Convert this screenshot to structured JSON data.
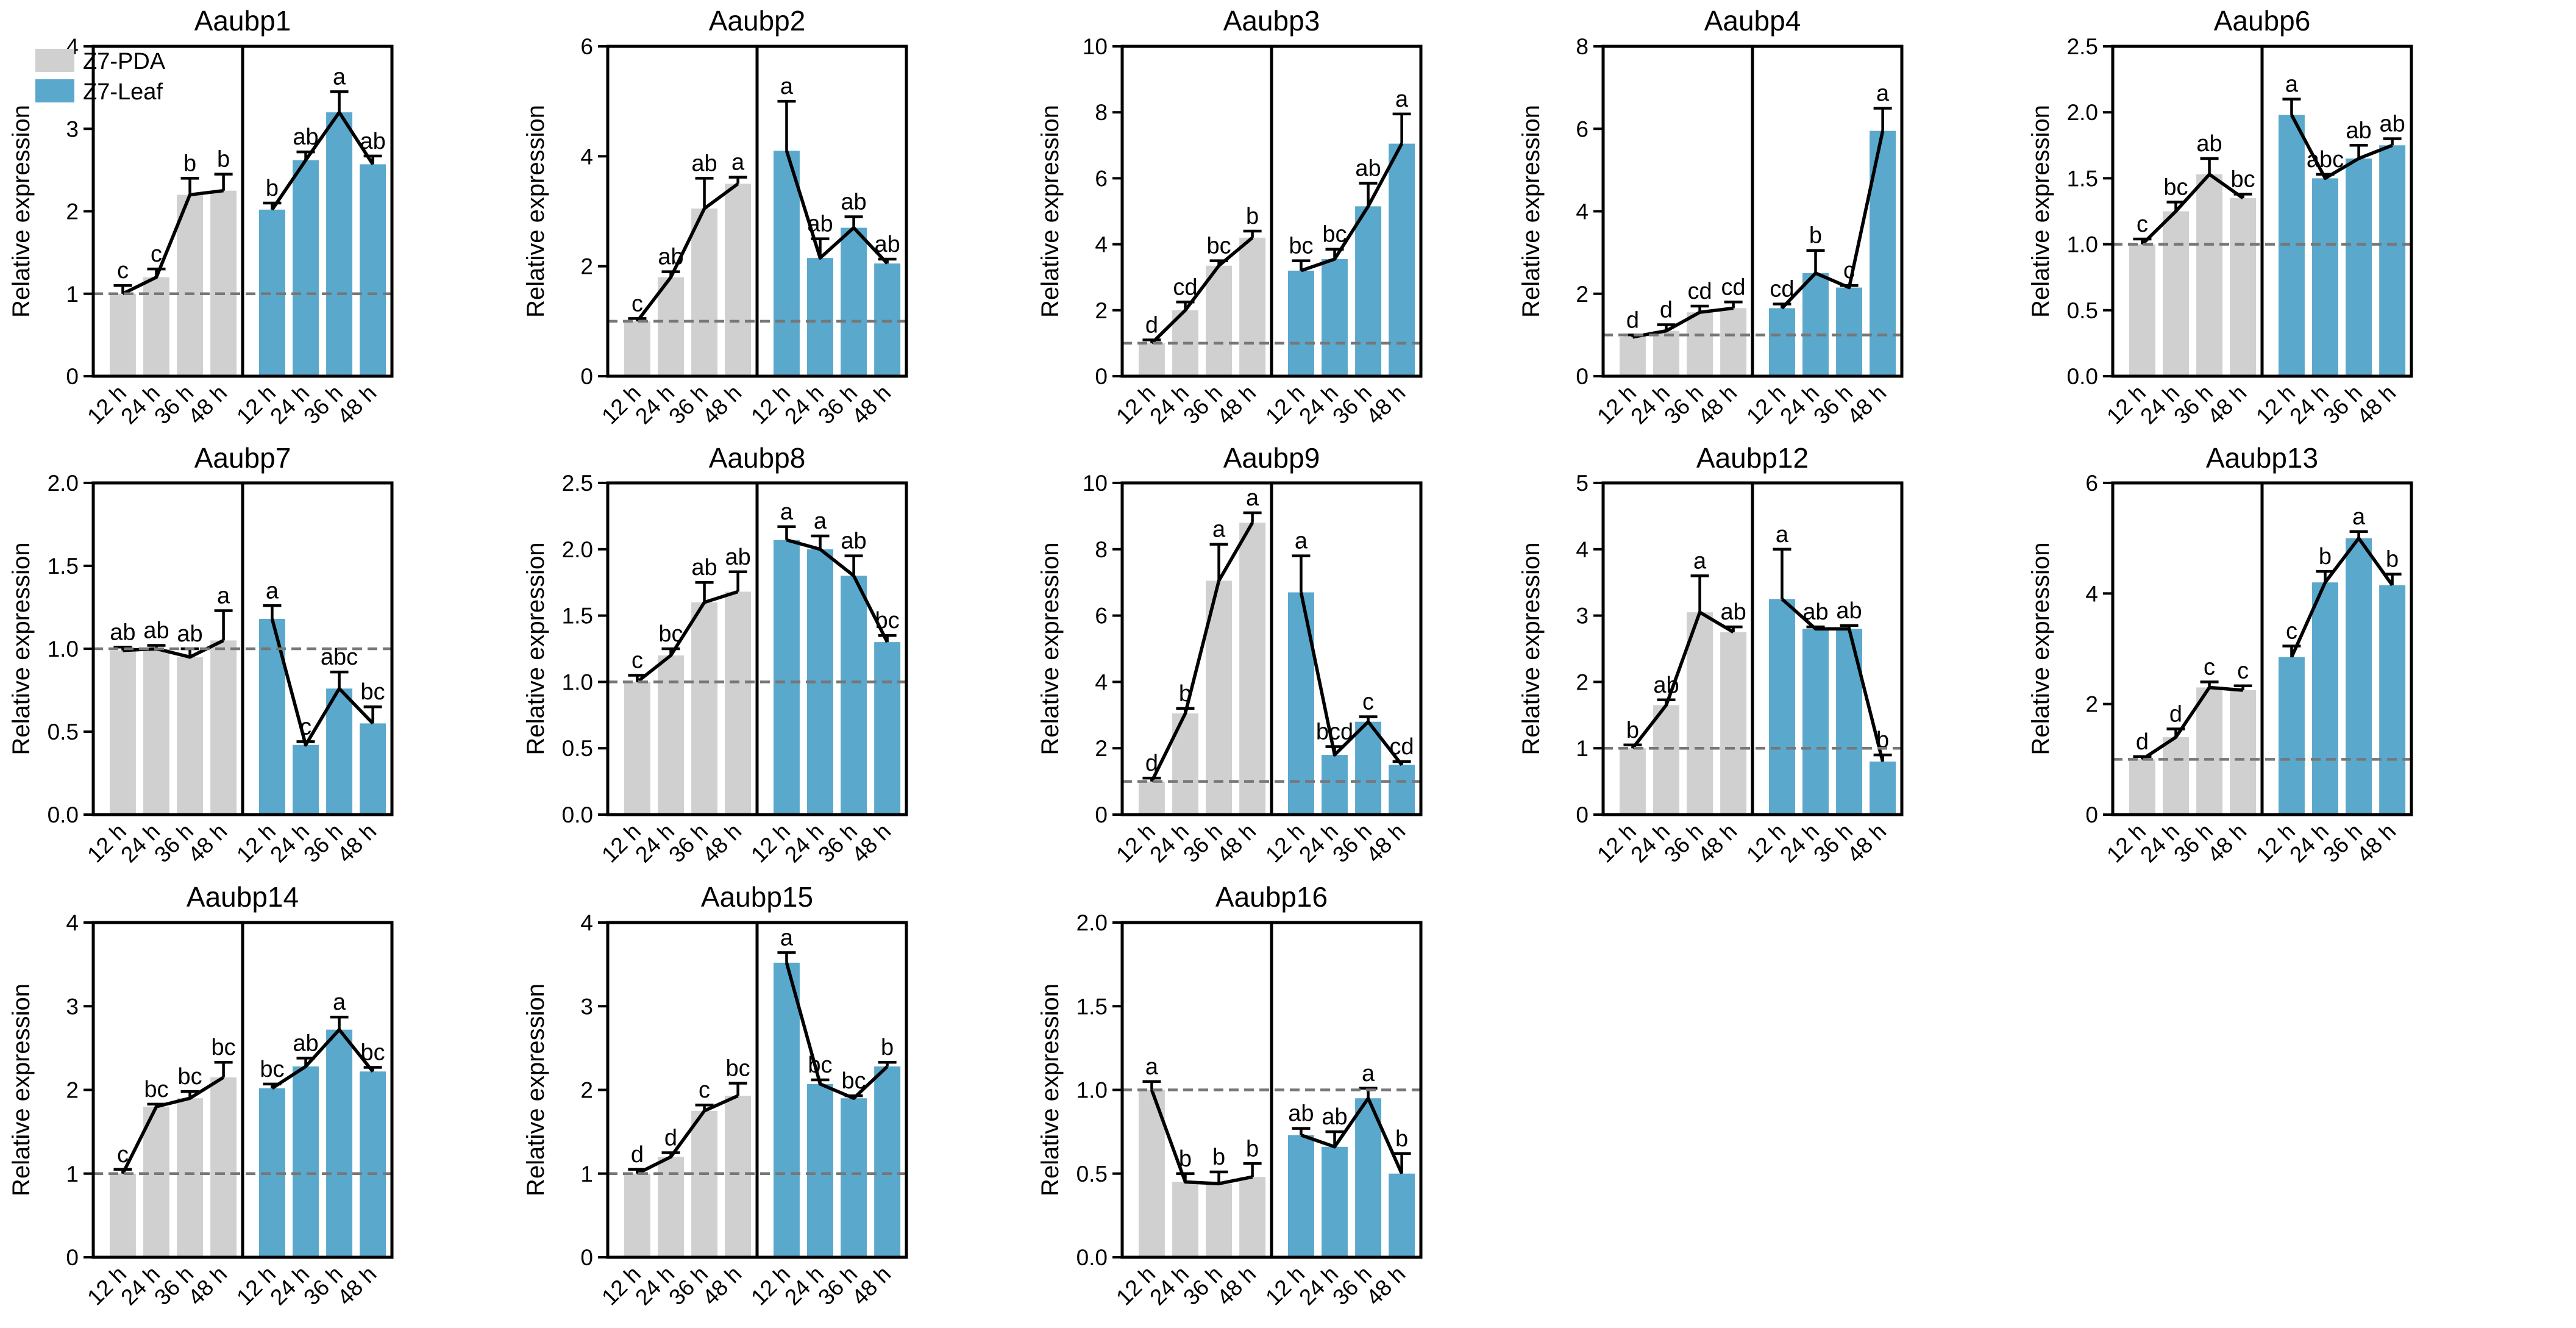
{
  "legend": [
    {
      "label": "Z7-PDA",
      "color": "#d0d0d0"
    },
    {
      "label": "Z7-Leaf",
      "color": "#5aa8cc"
    }
  ],
  "colors": {
    "pda": "#d0d0d0",
    "leaf": "#5aa8cc",
    "reference_line": "#777777"
  },
  "chart_data": [
    {
      "type": "bar",
      "title": "Aaubp1",
      "ylabel": "Relative expression",
      "ylim": [
        0,
        4
      ],
      "yticks": [
        "0",
        "1",
        "2",
        "3",
        "4"
      ],
      "categories": [
        "12 h",
        "24 h",
        "36 h",
        "48 h"
      ],
      "reference_value": 1,
      "series": [
        {
          "name": "Z7-PDA",
          "values": [
            1.0,
            1.2,
            2.2,
            2.25
          ],
          "errors": [
            0.1,
            0.1,
            0.2,
            0.2
          ],
          "letters": [
            "c",
            "c",
            "b",
            "b"
          ]
        },
        {
          "name": "Z7-Leaf",
          "values": [
            2.02,
            2.62,
            3.2,
            2.57
          ],
          "errors": [
            0.08,
            0.1,
            0.25,
            0.1
          ],
          "letters": [
            "b",
            "ab",
            "a",
            "ab"
          ]
        }
      ]
    },
    {
      "type": "bar",
      "title": "Aaubp2",
      "ylabel": "Relative expression",
      "ylim": [
        0,
        6
      ],
      "yticks": [
        "0",
        "2",
        "4",
        "6"
      ],
      "categories": [
        "12 h",
        "24 h",
        "36 h",
        "48 h"
      ],
      "reference_value": 1,
      "series": [
        {
          "name": "Z7-PDA",
          "values": [
            1.0,
            1.8,
            3.05,
            3.5
          ],
          "errors": [
            0.05,
            0.1,
            0.55,
            0.12
          ],
          "letters": [
            "c",
            "ab",
            "ab",
            "a"
          ]
        },
        {
          "name": "Z7-Leaf",
          "values": [
            4.1,
            2.15,
            2.7,
            2.05
          ],
          "errors": [
            0.9,
            0.35,
            0.2,
            0.08
          ],
          "letters": [
            "a",
            "ab",
            "ab",
            "ab"
          ]
        }
      ]
    },
    {
      "type": "bar",
      "title": "Aaubp3",
      "ylabel": "Relative expression",
      "ylim": [
        0,
        10
      ],
      "yticks": [
        "0",
        "2",
        "4",
        "6",
        "8",
        "10"
      ],
      "categories": [
        "12 h",
        "24 h",
        "36 h",
        "48 h"
      ],
      "reference_value": 1,
      "series": [
        {
          "name": "Z7-PDA",
          "values": [
            1.0,
            2.0,
            3.35,
            4.2
          ],
          "errors": [
            0.1,
            0.25,
            0.15,
            0.2
          ],
          "letters": [
            "d",
            "cd",
            "bc",
            "b"
          ]
        },
        {
          "name": "Z7-Leaf",
          "values": [
            3.2,
            3.55,
            5.15,
            7.05
          ],
          "errors": [
            0.3,
            0.3,
            0.7,
            0.9
          ],
          "letters": [
            "bc",
            "bc",
            "ab",
            "a"
          ]
        }
      ]
    },
    {
      "type": "bar",
      "title": "Aaubp4",
      "ylabel": "Relative expression",
      "ylim": [
        0,
        8
      ],
      "yticks": [
        "0",
        "2",
        "4",
        "6",
        "8"
      ],
      "categories": [
        "12 h",
        "24 h",
        "36 h",
        "48 h"
      ],
      "reference_value": 1,
      "series": [
        {
          "name": "Z7-PDA",
          "values": [
            0.95,
            1.1,
            1.55,
            1.65
          ],
          "errors": [
            0.05,
            0.15,
            0.15,
            0.15
          ],
          "letters": [
            "d",
            "d",
            "cd",
            "cd"
          ]
        },
        {
          "name": "Z7-Leaf",
          "values": [
            1.65,
            2.5,
            2.15,
            5.95
          ],
          "errors": [
            0.1,
            0.55,
            0.05,
            0.55
          ],
          "letters": [
            "cd",
            "b",
            "c",
            "a"
          ]
        }
      ]
    },
    {
      "type": "bar",
      "title": "Aaubp6",
      "ylabel": "Relative expression",
      "ylim": [
        0,
        2.5
      ],
      "yticks": [
        "0.0",
        "0.5",
        "1.0",
        "1.5",
        "2.0",
        "2.5"
      ],
      "categories": [
        "12 h",
        "24 h",
        "36 h",
        "48 h"
      ],
      "reference_value": 1,
      "series": [
        {
          "name": "Z7-PDA",
          "values": [
            1.0,
            1.25,
            1.53,
            1.35
          ],
          "errors": [
            0.04,
            0.07,
            0.12,
            0.03
          ],
          "letters": [
            "c",
            "bc",
            "ab",
            "bc"
          ]
        },
        {
          "name": "Z7-Leaf",
          "values": [
            1.98,
            1.5,
            1.65,
            1.75
          ],
          "errors": [
            0.12,
            0.03,
            0.1,
            0.05
          ],
          "letters": [
            "a",
            "abc",
            "ab",
            "ab"
          ]
        }
      ]
    },
    {
      "type": "bar",
      "title": "Aaubp7",
      "ylabel": "Relative expression",
      "ylim": [
        0,
        2.0
      ],
      "yticks": [
        "0.0",
        "0.5",
        "1.0",
        "1.5",
        "2.0"
      ],
      "categories": [
        "12 h",
        "24 h",
        "36 h",
        "48 h"
      ],
      "reference_value": 1,
      "series": [
        {
          "name": "Z7-PDA",
          "values": [
            0.99,
            1.0,
            0.95,
            1.05
          ],
          "errors": [
            0.02,
            0.02,
            0.05,
            0.18
          ],
          "letters": [
            "ab",
            "ab",
            "ab",
            "a"
          ]
        },
        {
          "name": "Z7-Leaf",
          "values": [
            1.18,
            0.42,
            0.76,
            0.55
          ],
          "errors": [
            0.08,
            0.02,
            0.1,
            0.1
          ],
          "letters": [
            "a",
            "c",
            "abc",
            "bc"
          ]
        }
      ]
    },
    {
      "type": "bar",
      "title": "Aaubp8",
      "ylabel": "Relative expression",
      "ylim": [
        0,
        2.5
      ],
      "yticks": [
        "0.0",
        "0.5",
        "1.0",
        "1.5",
        "2.0",
        "2.5"
      ],
      "categories": [
        "12 h",
        "24 h",
        "36 h",
        "48 h"
      ],
      "reference_value": 1,
      "series": [
        {
          "name": "Z7-PDA",
          "values": [
            1.0,
            1.2,
            1.6,
            1.68
          ],
          "errors": [
            0.05,
            0.05,
            0.15,
            0.15
          ],
          "letters": [
            "c",
            "bc",
            "ab",
            "ab"
          ]
        },
        {
          "name": "Z7-Leaf",
          "values": [
            2.07,
            2.0,
            1.8,
            1.3
          ],
          "errors": [
            0.1,
            0.1,
            0.15,
            0.05
          ],
          "letters": [
            "a",
            "a",
            "ab",
            "bc"
          ]
        }
      ]
    },
    {
      "type": "bar",
      "title": "Aaubp9",
      "ylabel": "Relative expression",
      "ylim": [
        0,
        10
      ],
      "yticks": [
        "0",
        "2",
        "4",
        "6",
        "8",
        "10"
      ],
      "categories": [
        "12 h",
        "24 h",
        "36 h",
        "48 h"
      ],
      "reference_value": 1,
      "series": [
        {
          "name": "Z7-PDA",
          "values": [
            1.0,
            3.05,
            7.05,
            8.8
          ],
          "errors": [
            0.1,
            0.15,
            1.1,
            0.3
          ],
          "letters": [
            "d",
            "b",
            "a",
            "a"
          ]
        },
        {
          "name": "Z7-Leaf",
          "values": [
            6.7,
            1.8,
            2.8,
            1.5
          ],
          "errors": [
            1.1,
            0.25,
            0.15,
            0.1
          ],
          "letters": [
            "a",
            "bcd",
            "c",
            "cd"
          ]
        }
      ]
    },
    {
      "type": "bar",
      "title": "Aaubp12",
      "ylabel": "Relative expression",
      "ylim": [
        0,
        5
      ],
      "yticks": [
        "0",
        "1",
        "2",
        "3",
        "4",
        "5"
      ],
      "categories": [
        "12 h",
        "24 h",
        "36 h",
        "48 h"
      ],
      "reference_value": 1,
      "series": [
        {
          "name": "Z7-PDA",
          "values": [
            1.0,
            1.65,
            3.05,
            2.75
          ],
          "errors": [
            0.05,
            0.08,
            0.55,
            0.08
          ],
          "letters": [
            "b",
            "ab",
            "a",
            "ab"
          ]
        },
        {
          "name": "Z7-Leaf",
          "values": [
            3.25,
            2.8,
            2.8,
            0.8
          ],
          "errors": [
            0.75,
            0.03,
            0.05,
            0.1
          ],
          "letters": [
            "a",
            "ab",
            "ab",
            "b"
          ]
        }
      ]
    },
    {
      "type": "bar",
      "title": "Aaubp13",
      "ylabel": "Relative expression",
      "ylim": [
        0,
        6
      ],
      "yticks": [
        "0",
        "2",
        "4",
        "6"
      ],
      "categories": [
        "12 h",
        "24 h",
        "36 h",
        "48 h"
      ],
      "reference_value": 1,
      "series": [
        {
          "name": "Z7-PDA",
          "values": [
            1.0,
            1.4,
            2.3,
            2.25
          ],
          "errors": [
            0.05,
            0.15,
            0.1,
            0.08
          ],
          "letters": [
            "d",
            "d",
            "c",
            "c"
          ]
        },
        {
          "name": "Z7-Leaf",
          "values": [
            2.85,
            4.2,
            5.0,
            4.15
          ],
          "errors": [
            0.2,
            0.2,
            0.12,
            0.2
          ],
          "letters": [
            "c",
            "b",
            "a",
            "b"
          ]
        }
      ]
    },
    {
      "type": "bar",
      "title": "Aaubp14",
      "ylabel": "Relative expression",
      "ylim": [
        0,
        4
      ],
      "yticks": [
        "0",
        "1",
        "2",
        "3",
        "4"
      ],
      "categories": [
        "12 h",
        "24 h",
        "36 h",
        "48 h"
      ],
      "reference_value": 1,
      "series": [
        {
          "name": "Z7-PDA",
          "values": [
            1.0,
            1.8,
            1.9,
            2.15
          ],
          "errors": [
            0.05,
            0.03,
            0.08,
            0.18
          ],
          "letters": [
            "c",
            "bc",
            "bc",
            "bc"
          ]
        },
        {
          "name": "Z7-Leaf",
          "values": [
            2.02,
            2.28,
            2.72,
            2.22
          ],
          "errors": [
            0.05,
            0.1,
            0.15,
            0.05
          ],
          "letters": [
            "bc",
            "ab",
            "a",
            "bc"
          ]
        }
      ]
    },
    {
      "type": "bar",
      "title": "Aaubp15",
      "ylabel": "Relative expression",
      "ylim": [
        0,
        4
      ],
      "yticks": [
        "0",
        "1",
        "2",
        "3",
        "4"
      ],
      "categories": [
        "12 h",
        "24 h",
        "36 h",
        "48 h"
      ],
      "reference_value": 1,
      "series": [
        {
          "name": "Z7-PDA",
          "values": [
            1.0,
            1.2,
            1.75,
            1.93
          ],
          "errors": [
            0.05,
            0.05,
            0.07,
            0.15
          ],
          "letters": [
            "d",
            "d",
            "c",
            "bc"
          ]
        },
        {
          "name": "Z7-Leaf",
          "values": [
            3.52,
            2.07,
            1.9,
            2.28
          ],
          "errors": [
            0.12,
            0.05,
            0.03,
            0.05
          ],
          "letters": [
            "a",
            "bc",
            "bc",
            "b"
          ]
        }
      ]
    },
    {
      "type": "bar",
      "title": "Aaubp16",
      "ylabel": "Relative expression",
      "ylim": [
        0,
        2.0
      ],
      "yticks": [
        "0.0",
        "0.5",
        "1.0",
        "1.5",
        "2.0"
      ],
      "categories": [
        "12 h",
        "24 h",
        "36 h",
        "48 h"
      ],
      "reference_value": 1,
      "series": [
        {
          "name": "Z7-PDA",
          "values": [
            1.0,
            0.45,
            0.44,
            0.48
          ],
          "errors": [
            0.05,
            0.05,
            0.07,
            0.08
          ],
          "letters": [
            "a",
            "b",
            "b",
            "b"
          ]
        },
        {
          "name": "Z7-Leaf",
          "values": [
            0.73,
            0.66,
            0.95,
            0.5
          ],
          "errors": [
            0.04,
            0.09,
            0.06,
            0.12
          ],
          "letters": [
            "ab",
            "ab",
            "a",
            "b"
          ]
        }
      ]
    }
  ]
}
